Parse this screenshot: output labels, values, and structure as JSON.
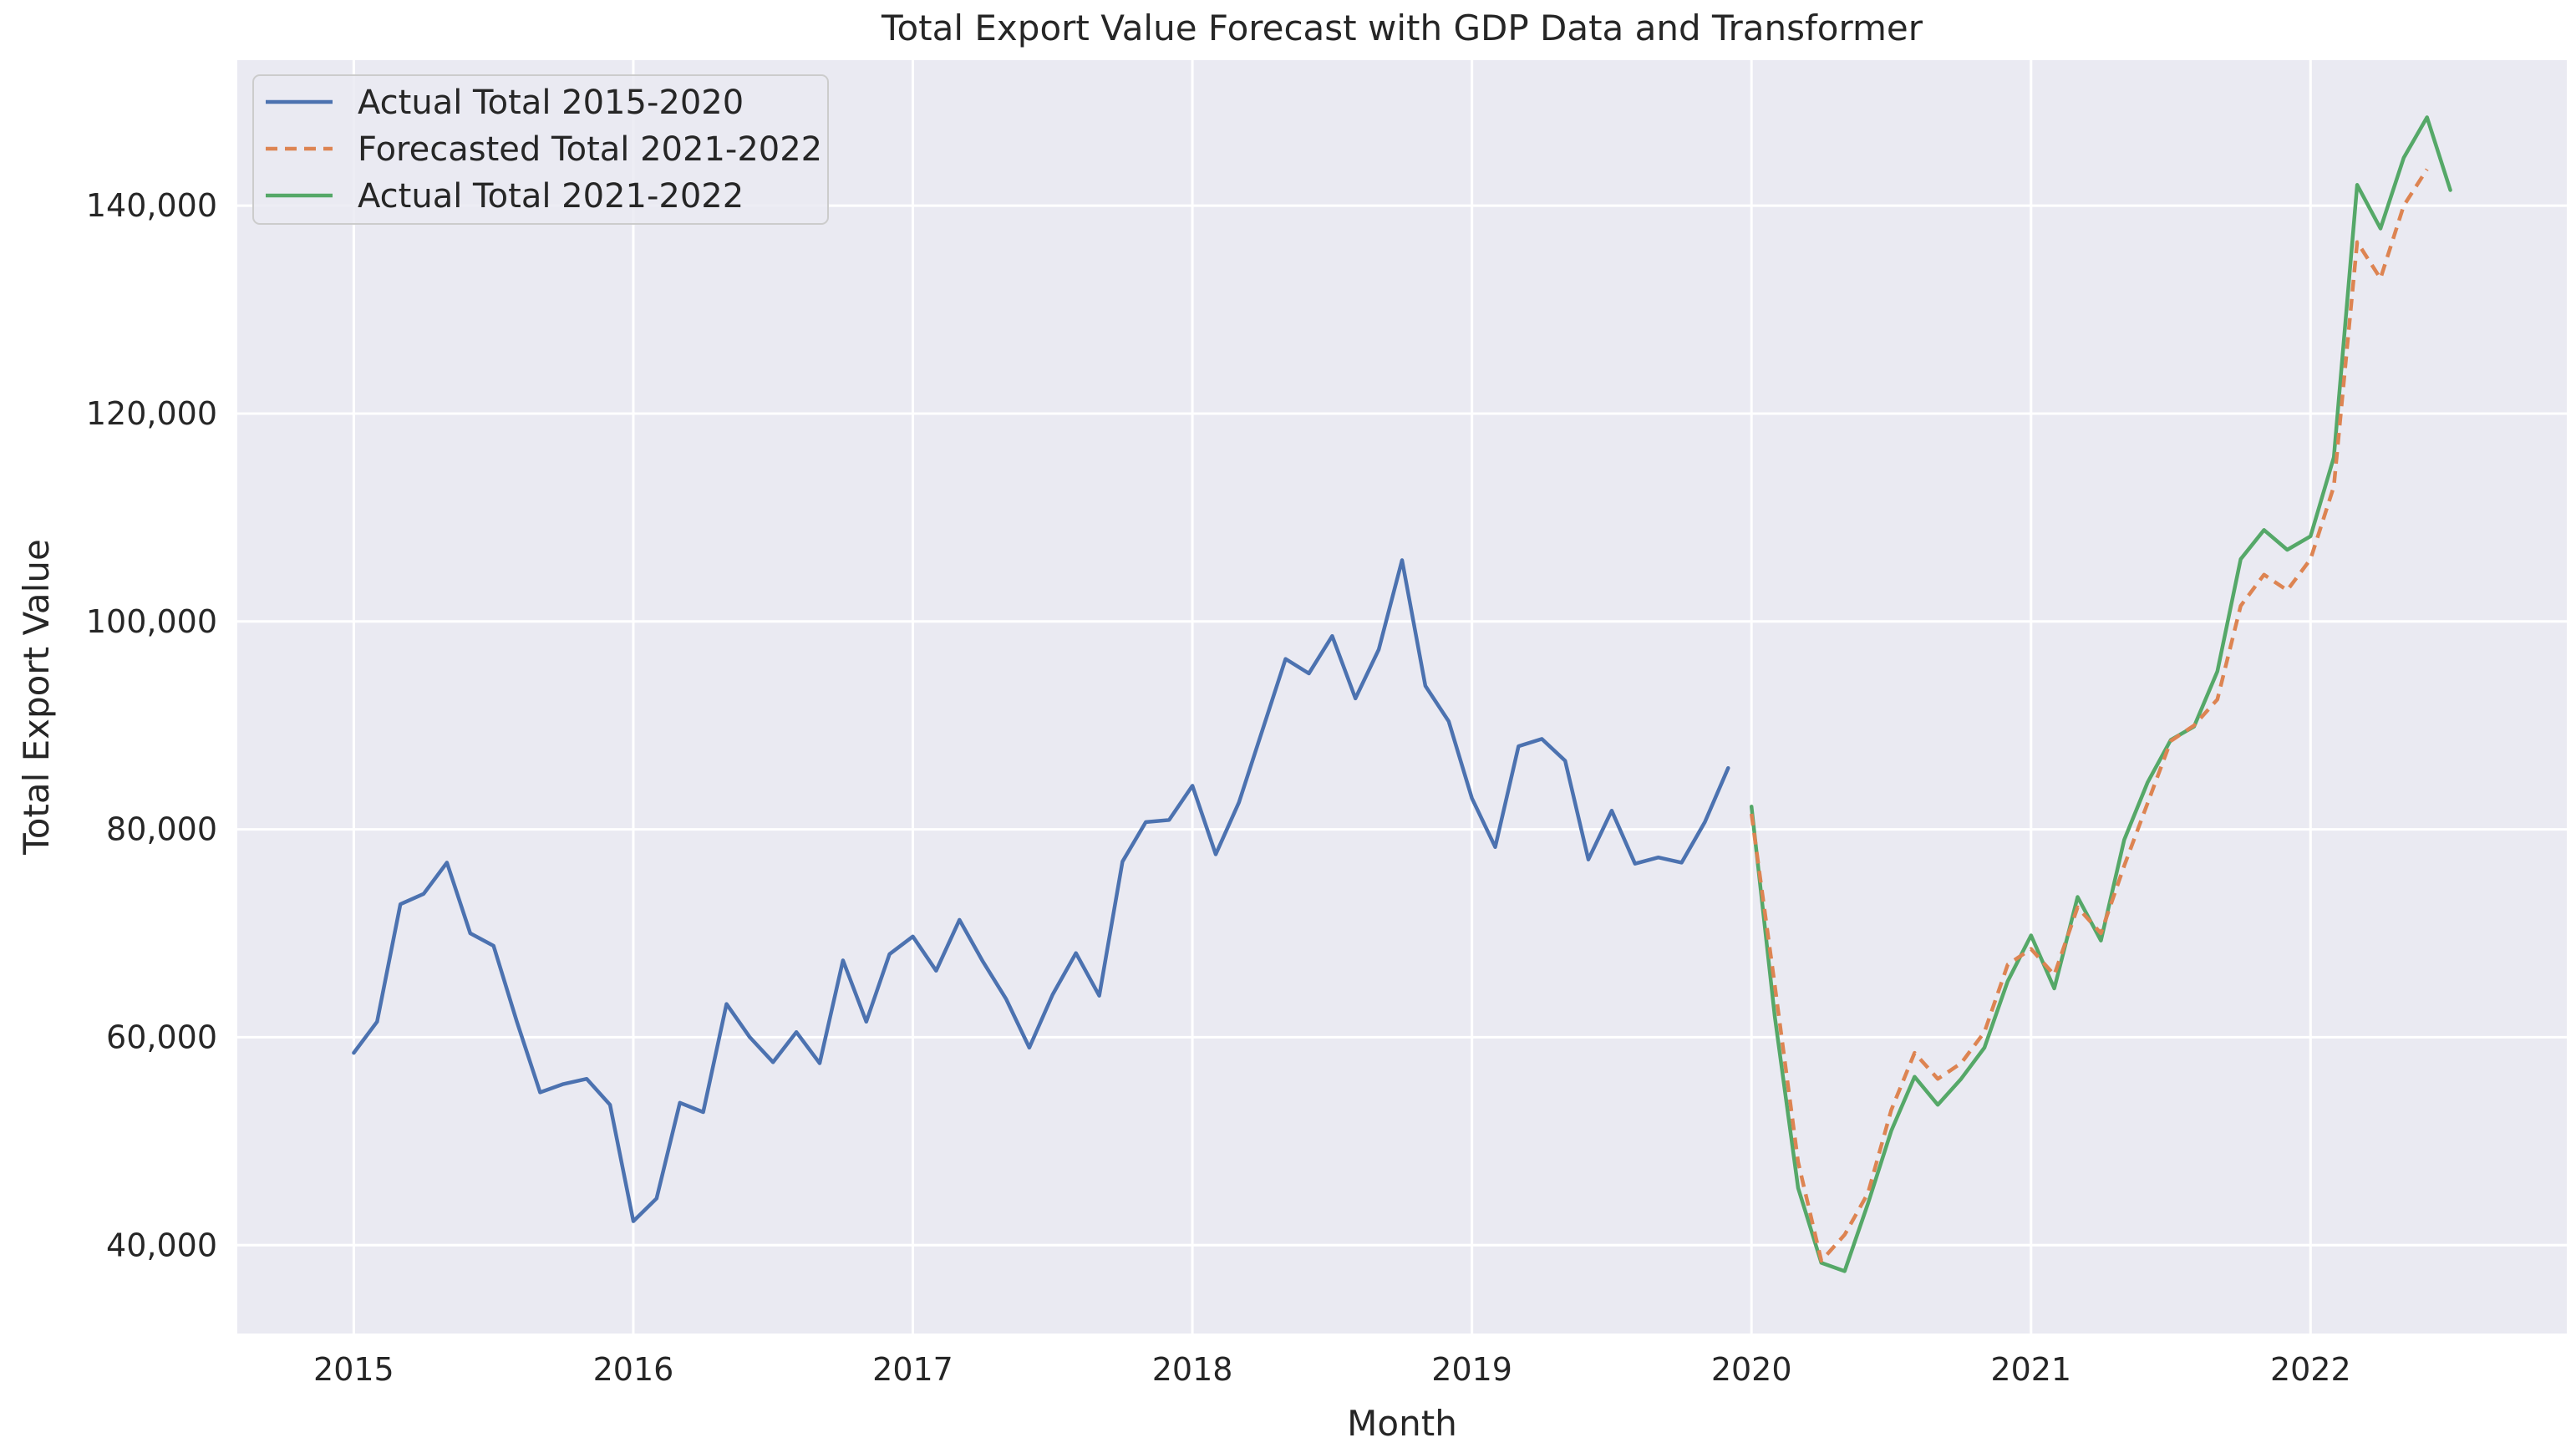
{
  "chart_data": {
    "type": "line",
    "title": "Total Export Value Forecast with GDP Data and Transformer",
    "xlabel": "Month",
    "ylabel": "Total Export Value",
    "xlim": [
      "2014-08",
      "2022-12"
    ],
    "ylim": [
      31500,
      154000
    ],
    "x_ticks": [
      "2015",
      "2016",
      "2017",
      "2018",
      "2019",
      "2020",
      "2021",
      "2022"
    ],
    "y_ticks": [
      40000,
      60000,
      80000,
      100000,
      120000,
      140000
    ],
    "y_tick_labels": [
      "40,000",
      "60,000",
      "80,000",
      "100,000",
      "120,000",
      "140,000"
    ],
    "grid": true,
    "legend_position": "top-left",
    "series": [
      {
        "name": "Actual Total 2015-2020",
        "color": "#4c72b0",
        "style": "solid",
        "start": "2015-01",
        "values": [
          58500,
          61500,
          72800,
          73800,
          76800,
          70000,
          68800,
          61500,
          54700,
          55500,
          56000,
          53500,
          42300,
          44500,
          53700,
          52800,
          63200,
          60000,
          57600,
          60500,
          57500,
          67400,
          61500,
          68000,
          69700,
          66400,
          71300,
          67300,
          63700,
          59000,
          64100,
          68100,
          64000,
          76900,
          80700,
          80900,
          84200,
          77600,
          82600,
          89500,
          96400,
          95000,
          98600,
          92600,
          97300,
          105900,
          93800,
          90400,
          83000,
          78300,
          88000,
          88700,
          86600,
          77100,
          81800,
          76700,
          77300,
          76800,
          80700,
          85900
        ]
      },
      {
        "name": "Forecasted Total 2021-2022",
        "color": "#dd8452",
        "style": "dashed",
        "start": "2020-01",
        "values": [
          81500,
          65000,
          48000,
          38500,
          41000,
          45000,
          53000,
          58500,
          56000,
          57500,
          60500,
          67000,
          68500,
          66000,
          72500,
          70000,
          76500,
          82500,
          88500,
          90000,
          92500,
          101500,
          104500,
          103000,
          106000,
          113000,
          136500,
          133000,
          140000,
          143500
        ]
      },
      {
        "name": "Actual Total 2021-2022",
        "color": "#55a868",
        "style": "solid",
        "start": "2020-01",
        "values": [
          82200,
          62000,
          45500,
          38300,
          37500,
          44000,
          51000,
          56200,
          53500,
          56000,
          59000,
          65400,
          69800,
          64700,
          73500,
          69300,
          79000,
          84500,
          88600,
          89900,
          95200,
          106000,
          108800,
          106900,
          108200,
          115800,
          142000,
          137800,
          144600,
          148500,
          141500
        ]
      }
    ]
  }
}
